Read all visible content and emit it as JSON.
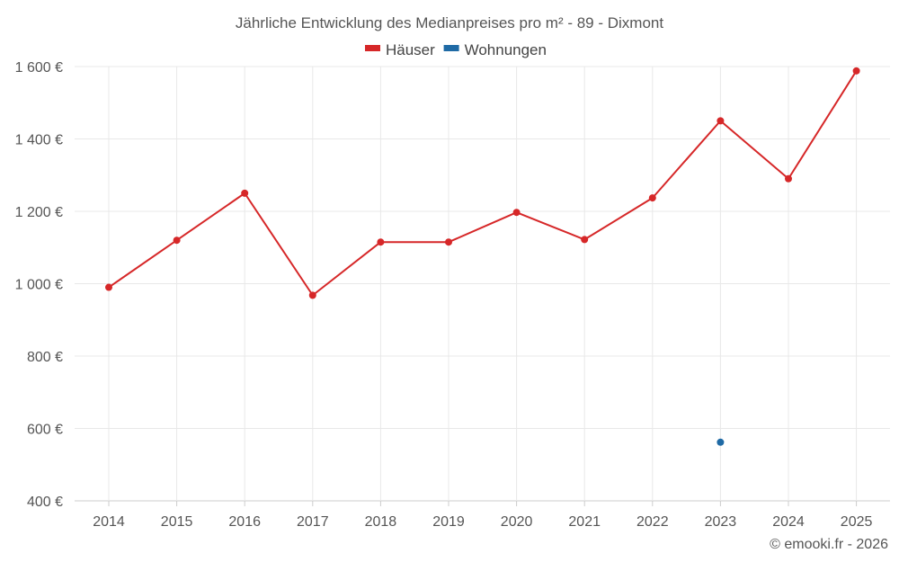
{
  "chart_data": {
    "type": "line",
    "title": "Jährliche Entwicklung des Medianpreises pro m² - 89 - Dixmont",
    "xlabel": "",
    "ylabel": "",
    "categories": [
      "2014",
      "2015",
      "2016",
      "2017",
      "2018",
      "2019",
      "2020",
      "2021",
      "2022",
      "2023",
      "2024",
      "2025"
    ],
    "ylim": [
      400,
      1600
    ],
    "yticks": [
      400,
      600,
      800,
      1000,
      1200,
      1400,
      1600
    ],
    "ytick_labels": [
      "400 €",
      "600 €",
      "800 €",
      "1 000 €",
      "1 200 €",
      "1 400 €",
      "1 600 €"
    ],
    "grid": true,
    "legend_position": "top-center",
    "series": [
      {
        "name": "Häuser",
        "color": "#d62728",
        "values": [
          990,
          1120,
          1250,
          968,
          1115,
          1115,
          1197,
          1122,
          1237,
          1450,
          1290,
          1588
        ]
      },
      {
        "name": "Wohnungen",
        "color": "#1f6aa5",
        "values": [
          null,
          null,
          null,
          null,
          null,
          null,
          null,
          null,
          null,
          562,
          null,
          null
        ]
      }
    ]
  },
  "footer": {
    "credit": "© emooki.fr - 2026"
  }
}
